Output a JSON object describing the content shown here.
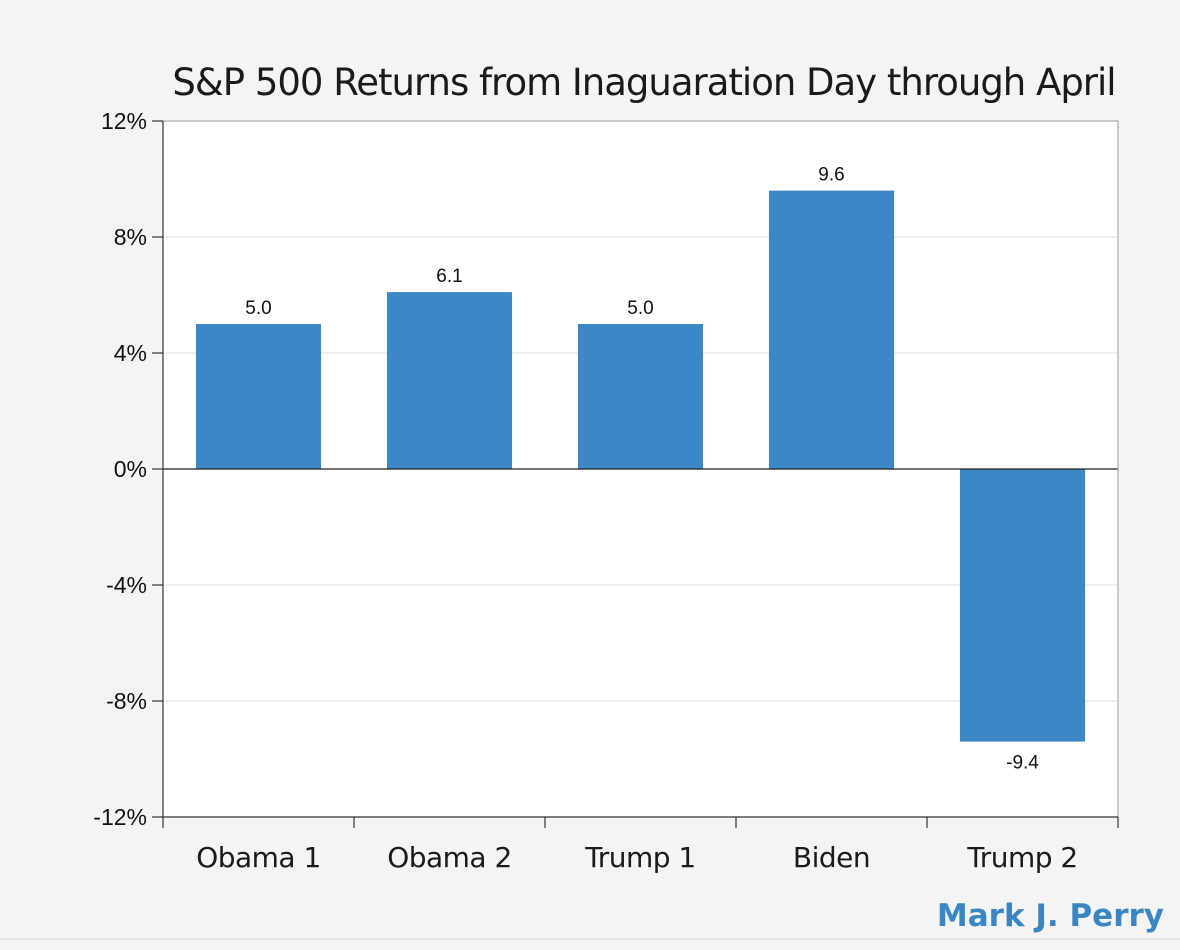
{
  "chart_data": {
    "type": "bar",
    "title": "S&P 500 Returns from Inaguaration Day through April",
    "categories": [
      "Obama 1",
      "Obama 2",
      "Trump 1",
      "Biden",
      "Trump 2"
    ],
    "values": [
      5.0,
      6.1,
      5.0,
      9.6,
      -9.4
    ],
    "data_labels": [
      "5.0",
      "6.1",
      "5.0",
      "9.6",
      "-9.4"
    ],
    "yticks": [
      12,
      8,
      4,
      0,
      -4,
      -8,
      -12
    ],
    "ytick_labels": [
      "12%",
      "8%",
      "4%",
      "0%",
      "-4%",
      "-8%",
      "-12%"
    ],
    "ylim": [
      -12,
      12
    ],
    "xlabel": "",
    "ylabel": "",
    "grid": true,
    "legend": "none"
  },
  "credit": "Mark J. Perry",
  "colors": {
    "bar": "#3d87c6",
    "credit": "#3a86c4",
    "grid": "#dcdcdc",
    "axis": "#333333",
    "zero_line": "#222222",
    "background": "#f4f4f4",
    "plot_background": "#ffffff"
  }
}
